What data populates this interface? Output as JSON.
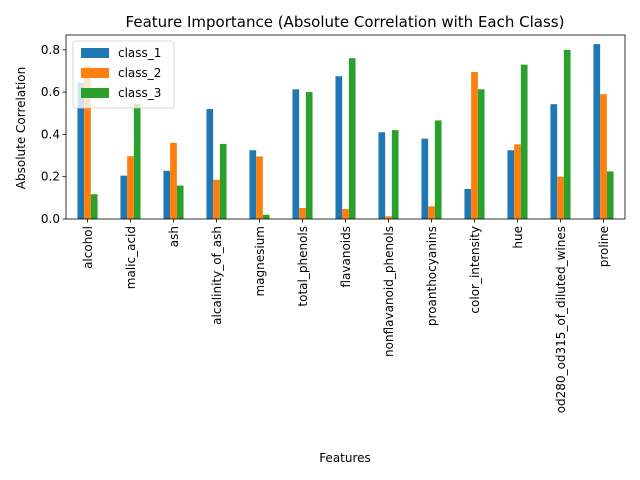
{
  "chart_data": {
    "type": "bar",
    "title": "Feature Importance (Absolute Correlation with Each Class)",
    "xlabel": "Features",
    "ylabel": "Absolute Correlation",
    "ylim": [
      0,
      0.87
    ],
    "yticks": [
      0.0,
      0.2,
      0.4,
      0.6,
      0.8
    ],
    "ytick_labels": [
      "0.0",
      "0.2",
      "0.4",
      "0.6",
      "0.8"
    ],
    "legend_position": "top-left",
    "grid": false,
    "categories": [
      "alcohol",
      "malic_acid",
      "ash",
      "alcalinity_of_ash",
      "magnesium",
      "total_phenols",
      "flavanoids",
      "nonflavanoid_phenols",
      "proanthocyanins",
      "color_intensity",
      "hue",
      "od280_od315_of_diluted_wines",
      "proline"
    ],
    "series": [
      {
        "name": "class_1",
        "color": "#1f77b4",
        "values": [
          0.645,
          0.205,
          0.228,
          0.52,
          0.325,
          0.613,
          0.675,
          0.41,
          0.38,
          0.142,
          0.325,
          0.543,
          0.827
        ]
      },
      {
        "name": "class_2",
        "color": "#ff7f0e",
        "values": [
          0.725,
          0.297,
          0.36,
          0.185,
          0.296,
          0.052,
          0.047,
          0.013,
          0.06,
          0.695,
          0.353,
          0.2,
          0.59
        ]
      },
      {
        "name": "class_3",
        "color": "#2ca02c",
        "values": [
          0.117,
          0.545,
          0.158,
          0.355,
          0.02,
          0.6,
          0.76,
          0.42,
          0.466,
          0.613,
          0.73,
          0.8,
          0.225
        ]
      }
    ]
  }
}
